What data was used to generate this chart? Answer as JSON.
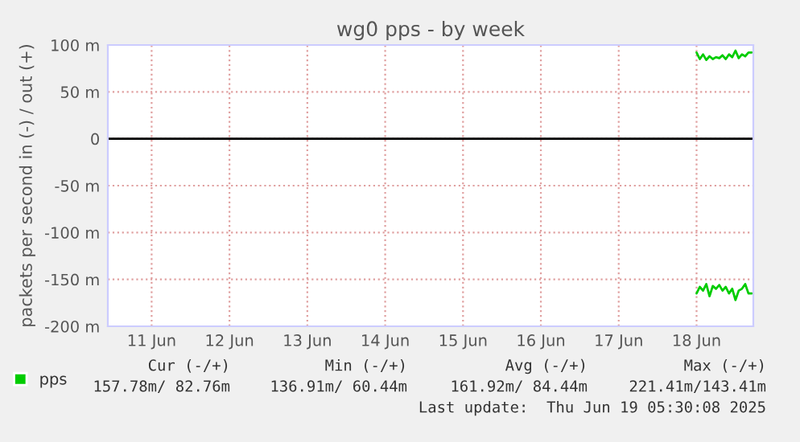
{
  "chart_data": {
    "type": "line",
    "title": "wg0 pps - by week",
    "ylabel": "packets per second in (-) / out (+)",
    "xlim": [
      "2025-06-10T22:30",
      "2025-06-19T05:30"
    ],
    "xticks": [
      {
        "value": "2025-06-11T12:00",
        "label": "11 Jun"
      },
      {
        "value": "2025-06-12T12:00",
        "label": "12 Jun"
      },
      {
        "value": "2025-06-13T12:00",
        "label": "13 Jun"
      },
      {
        "value": "2025-06-14T12:00",
        "label": "14 Jun"
      },
      {
        "value": "2025-06-15T12:00",
        "label": "15 Jun"
      },
      {
        "value": "2025-06-16T12:00",
        "label": "16 Jun"
      },
      {
        "value": "2025-06-17T12:00",
        "label": "17 Jun"
      },
      {
        "value": "2025-06-18T12:00",
        "label": "18 Jun"
      }
    ],
    "ylim": [
      -200,
      100
    ],
    "yticks": [
      {
        "value": -200,
        "label": "-200 m"
      },
      {
        "value": -150,
        "label": "-150 m"
      },
      {
        "value": -100,
        "label": "-100 m"
      },
      {
        "value": -50,
        "label": "-50 m"
      },
      0,
      {
        "value": 50,
        "label": "50 m"
      },
      {
        "value": 100,
        "label": "100 m"
      }
    ],
    "grid": true,
    "legend": "bottom",
    "marker": "none",
    "line_style": "solid",
    "x": [
      "2025-06-18T12:00",
      "2025-06-18T13:00",
      "2025-06-18T14:00",
      "2025-06-18T15:00",
      "2025-06-18T16:00",
      "2025-06-18T17:00",
      "2025-06-18T18:00",
      "2025-06-18T19:00",
      "2025-06-18T20:00",
      "2025-06-18T21:00",
      "2025-06-18T22:00",
      "2025-06-18T23:00",
      "2025-06-19T00:00",
      "2025-06-19T01:00",
      "2025-06-19T02:00",
      "2025-06-19T03:00",
      "2025-06-19T04:00",
      "2025-06-19T05:00"
    ],
    "series": [
      {
        "name": "pps",
        "color": "#00cc00",
        "values": [
          92,
          85,
          90,
          84,
          88,
          85,
          87,
          86,
          89,
          85,
          90,
          87,
          94,
          86,
          90,
          88,
          92,
          92
        ]
      },
      {
        "color": "#00cc00",
        "values": [
          -165,
          -158,
          -162,
          -155,
          -168,
          -157,
          -160,
          -156,
          -162,
          -158,
          -165,
          -160,
          -172,
          -162,
          -160,
          -155,
          -165,
          -165
        ]
      }
    ],
    "ref_lines": [
      {
        "axis": "y",
        "value": 0,
        "color": "#000000"
      }
    ],
    "annotations": [
      "Cur (-/+)",
      "Min (-/+)",
      "Avg (-/+)",
      "Max (-/+)",
      "157.78m/ 82.76m",
      "136.91m/ 60.44m",
      "161.92m/ 84.44m",
      "221.41m/143.41m",
      "Last update:  Thu Jun 19 05:30:08 2025"
    ]
  }
}
